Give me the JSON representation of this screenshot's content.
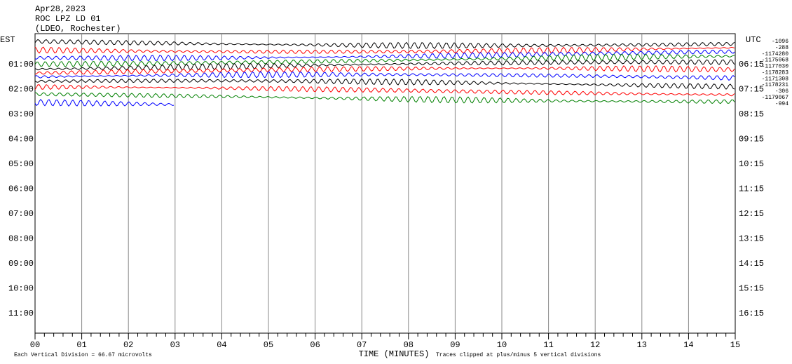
{
  "header": {
    "date": "Apr28,2023",
    "station": "ROC LPZ LD 01",
    "network": "(LDEO, Rochester)"
  },
  "axes": {
    "left_title": "EST",
    "right_title": "UTC",
    "x_title": "TIME (MINUTES)",
    "est_labels": [
      "01:00",
      "02:00",
      "03:00",
      "04:00",
      "05:00",
      "06:00",
      "07:00",
      "08:00",
      "09:00",
      "10:00",
      "11:00"
    ],
    "utc_labels": [
      "06:15",
      "07:15",
      "08:15",
      "09:15",
      "10:15",
      "11:15",
      "12:15",
      "13:15",
      "14:15",
      "15:15",
      "16:15"
    ],
    "x_labels": [
      "00",
      "01",
      "02",
      "03",
      "04",
      "05",
      "06",
      "07",
      "08",
      "09",
      "10",
      "11",
      "12",
      "13",
      "14",
      "15"
    ]
  },
  "traces": [
    {
      "color": "#000000",
      "label": "-1096"
    },
    {
      "color": "#ff0000",
      "label": "-288"
    },
    {
      "color": "#0000ff",
      "label": "-1174280"
    },
    {
      "color": "#008000",
      "label": "-1175068"
    },
    {
      "color": "#000000",
      "label": "-1177030"
    },
    {
      "color": "#ff0000",
      "label": "-1178283"
    },
    {
      "color": "#0000ff",
      "label": "-1171308"
    },
    {
      "color": "#000000",
      "label": "-1178231"
    },
    {
      "color": "#ff0000",
      "label": "-306"
    },
    {
      "color": "#008000",
      "label": "-1179067"
    },
    {
      "color": "#0000ff",
      "label": "-994"
    }
  ],
  "footer": {
    "scale_note": "Each Vertical Division =   66.67 microvolts",
    "clip_note": "Traces clipped at plus/minus 5 vertical divisions"
  }
}
